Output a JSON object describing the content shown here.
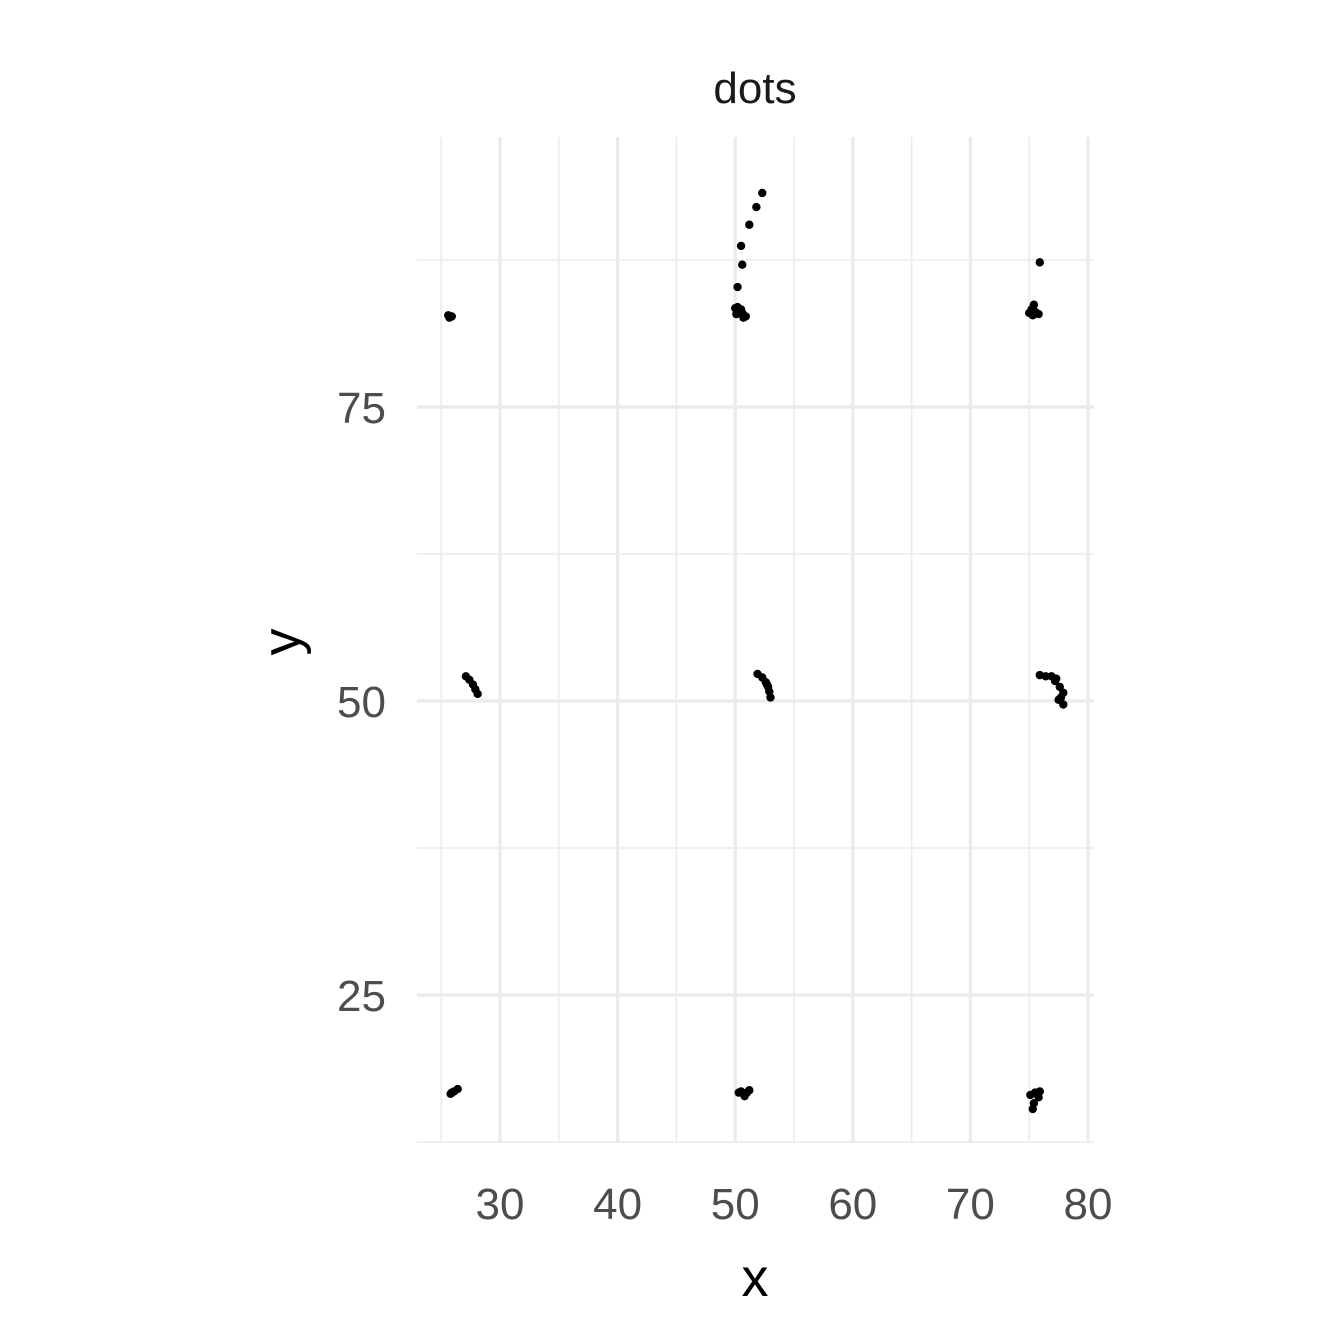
{
  "chart_data": {
    "type": "scatter",
    "title": "dots",
    "xlabel": "x",
    "ylabel": "y",
    "xlim": [
      25,
      80
    ],
    "ylim": [
      12.5,
      93
    ],
    "x_ticks": [
      30,
      40,
      50,
      60,
      70,
      80
    ],
    "x_minor_ticks": [
      25,
      35,
      45,
      55,
      65,
      75
    ],
    "y_ticks": [
      25,
      50,
      75
    ],
    "y_minor_ticks": [
      12.5,
      37.5,
      62.5,
      87.5
    ],
    "grid": true,
    "marker_color": "#000000",
    "series": [
      {
        "points": [
          {
            "x": 25.6,
            "y": 82.8
          },
          {
            "x": 25.9,
            "y": 82.7
          },
          {
            "x": 25.7,
            "y": 82.6
          },
          {
            "x": 50.0,
            "y": 83.4
          },
          {
            "x": 50.3,
            "y": 83.2
          },
          {
            "x": 50.6,
            "y": 83.0
          },
          {
            "x": 50.9,
            "y": 82.7
          },
          {
            "x": 50.1,
            "y": 82.9
          },
          {
            "x": 50.5,
            "y": 83.3
          },
          {
            "x": 50.2,
            "y": 83.5
          },
          {
            "x": 50.7,
            "y": 82.6
          },
          {
            "x": 50.2,
            "y": 85.2
          },
          {
            "x": 50.6,
            "y": 87.1
          },
          {
            "x": 50.5,
            "y": 88.7
          },
          {
            "x": 51.2,
            "y": 90.5
          },
          {
            "x": 51.8,
            "y": 92.0
          },
          {
            "x": 52.3,
            "y": 93.2
          },
          {
            "x": 75.0,
            "y": 83.0
          },
          {
            "x": 75.3,
            "y": 82.8
          },
          {
            "x": 75.5,
            "y": 83.1
          },
          {
            "x": 75.8,
            "y": 82.9
          },
          {
            "x": 75.2,
            "y": 83.3
          },
          {
            "x": 75.6,
            "y": 83.0
          },
          {
            "x": 75.4,
            "y": 83.7
          },
          {
            "x": 75.9,
            "y": 87.3
          },
          {
            "x": 27.1,
            "y": 52.1
          },
          {
            "x": 27.4,
            "y": 51.8
          },
          {
            "x": 27.7,
            "y": 51.4
          },
          {
            "x": 27.9,
            "y": 51.0
          },
          {
            "x": 28.1,
            "y": 50.6
          },
          {
            "x": 51.9,
            "y": 52.3
          },
          {
            "x": 52.3,
            "y": 52.0
          },
          {
            "x": 52.6,
            "y": 51.6
          },
          {
            "x": 52.8,
            "y": 51.2
          },
          {
            "x": 52.9,
            "y": 50.8
          },
          {
            "x": 53.0,
            "y": 50.3
          },
          {
            "x": 52.7,
            "y": 51.4
          },
          {
            "x": 75.9,
            "y": 52.2
          },
          {
            "x": 76.4,
            "y": 52.1
          },
          {
            "x": 76.9,
            "y": 52.1
          },
          {
            "x": 77.2,
            "y": 51.7
          },
          {
            "x": 77.6,
            "y": 51.2
          },
          {
            "x": 77.9,
            "y": 50.7
          },
          {
            "x": 77.5,
            "y": 50.1
          },
          {
            "x": 77.9,
            "y": 49.7
          },
          {
            "x": 77.7,
            "y": 50.3
          },
          {
            "x": 77.3,
            "y": 51.9
          },
          {
            "x": 25.8,
            "y": 16.6
          },
          {
            "x": 26.1,
            "y": 16.8
          },
          {
            "x": 26.4,
            "y": 17.0
          },
          {
            "x": 25.9,
            "y": 16.7
          },
          {
            "x": 50.3,
            "y": 16.7
          },
          {
            "x": 50.7,
            "y": 16.6
          },
          {
            "x": 51.2,
            "y": 16.9
          },
          {
            "x": 50.8,
            "y": 16.4
          },
          {
            "x": 50.5,
            "y": 16.8
          },
          {
            "x": 51.0,
            "y": 16.7
          },
          {
            "x": 75.1,
            "y": 16.5
          },
          {
            "x": 75.5,
            "y": 16.7
          },
          {
            "x": 75.9,
            "y": 16.8
          },
          {
            "x": 75.8,
            "y": 16.3
          },
          {
            "x": 75.4,
            "y": 15.8
          },
          {
            "x": 75.3,
            "y": 15.3
          },
          {
            "x": 75.6,
            "y": 16.6
          }
        ]
      }
    ]
  }
}
